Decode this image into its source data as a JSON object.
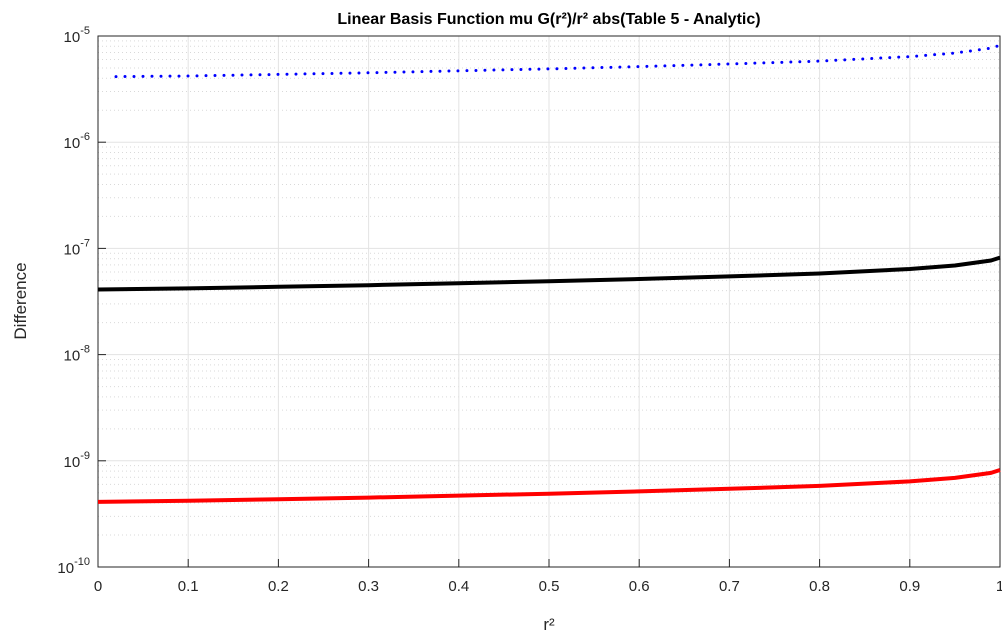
{
  "chart_data": {
    "type": "line",
    "title": "Linear Basis Function mu G(r²)/r² abs(Table 5 - Analytic)",
    "x_label": "r²",
    "y_label": "Difference",
    "xlim": [
      0,
      1
    ],
    "xticks": [
      0,
      0.1,
      0.2,
      0.3,
      0.4,
      0.5,
      0.6,
      0.7,
      0.8,
      0.9,
      1
    ],
    "ylim": [
      1e-10,
      1e-05
    ],
    "log_y": true,
    "grid": true,
    "minor_grid": true,
    "yticks": [
      {
        "value": 1e-10,
        "label": "10",
        "exponent": "-10"
      },
      {
        "value": 1e-09,
        "label": "10",
        "exponent": "-9"
      },
      {
        "value": 1e-08,
        "label": "10",
        "exponent": "-8"
      },
      {
        "value": 1e-07,
        "label": "10",
        "exponent": "-7"
      },
      {
        "value": 1e-06,
        "label": "10",
        "exponent": "-6"
      },
      {
        "value": 1e-05,
        "label": "10",
        "exponent": "-5"
      }
    ],
    "series": [
      {
        "color": "#0000ff",
        "style": "dotted",
        "x": [
          0.02,
          0.1,
          0.2,
          0.3,
          0.4,
          0.5,
          0.6,
          0.7,
          0.8,
          0.9,
          0.95,
          0.99,
          1
        ],
        "values": [
          4.15e-06,
          4.2e-06,
          4.35e-06,
          4.5e-06,
          4.7e-06,
          4.9e-06,
          5.15e-06,
          5.45e-06,
          5.8e-06,
          6.4e-06,
          6.9e-06,
          7.7e-06,
          8.2e-06
        ]
      },
      {
        "color": "#000000",
        "style": "solid",
        "x": [
          0,
          0.1,
          0.2,
          0.3,
          0.4,
          0.5,
          0.6,
          0.7,
          0.8,
          0.9,
          0.95,
          0.99,
          1
        ],
        "values": [
          4.1e-08,
          4.2e-08,
          4.35e-08,
          4.5e-08,
          4.7e-08,
          4.9e-08,
          5.15e-08,
          5.45e-08,
          5.8e-08,
          6.4e-08,
          6.9e-08,
          7.7e-08,
          8.2e-08
        ]
      },
      {
        "color": "#ff0000",
        "style": "solid",
        "x": [
          0,
          0.1,
          0.2,
          0.3,
          0.4,
          0.5,
          0.6,
          0.7,
          0.8,
          0.9,
          0.95,
          0.99,
          1
        ],
        "values": [
          4.1e-10,
          4.2e-10,
          4.35e-10,
          4.5e-10,
          4.7e-10,
          4.9e-10,
          5.15e-10,
          5.45e-10,
          5.8e-10,
          6.4e-10,
          6.9e-10,
          7.7e-10,
          8.2e-10
        ]
      }
    ]
  }
}
